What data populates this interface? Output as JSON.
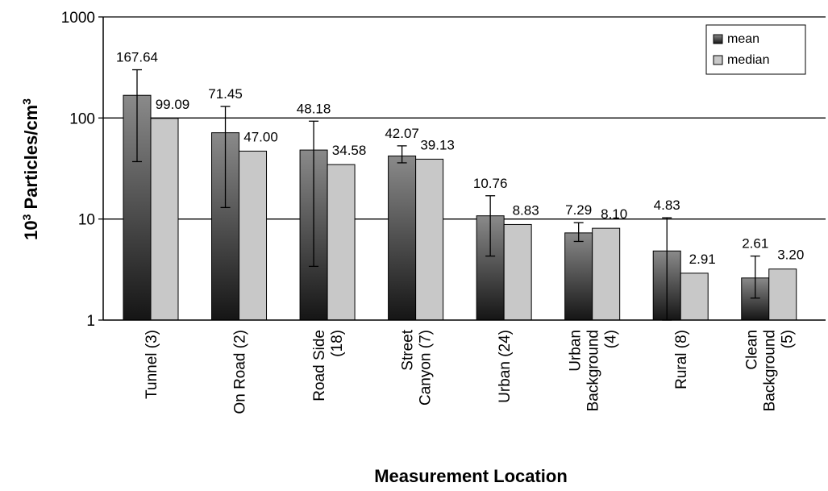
{
  "chart_data": {
    "type": "bar",
    "ylabel_base": "10",
    "ylabel_exp": "3",
    "ylabel_text": " Particles/cm",
    "ylabel_unit_exp": "3",
    "xlabel": "Measurement Location",
    "yscale": "log",
    "ylim": [
      1,
      1000
    ],
    "yticks": [
      "1",
      "10",
      "100",
      "1000"
    ],
    "grid": "horizontal major lines",
    "legend_position": "top-right",
    "categories": [
      [
        "Tunnel (3)"
      ],
      [
        "On Road (2)"
      ],
      [
        "Road Side",
        "(18)"
      ],
      [
        "Street",
        "Canyon (7)"
      ],
      [
        "Urban (24)"
      ],
      [
        "Urban",
        "Background",
        "(4)"
      ],
      [
        "Rural (8)"
      ],
      [
        "Clean",
        "Background",
        "(5)"
      ]
    ],
    "series": [
      {
        "name": "mean",
        "color": "#555555",
        "values": [
          167.64,
          71.45,
          48.18,
          42.07,
          10.76,
          7.29,
          4.83,
          2.61
        ],
        "labels": [
          "167.64",
          "71.45",
          "48.18",
          "42.07",
          "10.76",
          "7.29",
          "4.83",
          "2.61"
        ],
        "error_low": [
          37,
          13,
          3.4,
          36,
          4.3,
          6.0,
          1.0,
          1.65
        ],
        "error_high": [
          300,
          130,
          93,
          53,
          17,
          9.2,
          10.3,
          4.3
        ]
      },
      {
        "name": "median",
        "color": "#c8c8c8",
        "values": [
          99.09,
          47.0,
          34.58,
          39.13,
          8.83,
          8.1,
          2.91,
          3.2
        ],
        "labels": [
          "99.09",
          "47.00",
          "34.58",
          "39.13",
          "8.83",
          "8.10",
          "2.91",
          "3.20"
        ]
      }
    ]
  }
}
